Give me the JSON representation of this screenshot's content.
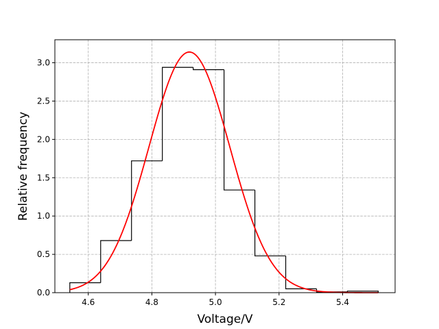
{
  "chart_data": {
    "type": "bar",
    "subtype": "step-histogram-with-fit",
    "title": "",
    "xlabel": "Voltage/V",
    "ylabel": "Relative frequency",
    "xlim": [
      4.495,
      5.565
    ],
    "ylim": [
      0.0,
      3.3
    ],
    "xticks": [
      4.6,
      4.8,
      5.0,
      5.2,
      5.4
    ],
    "xtick_labels": [
      "4.6",
      "4.8",
      "5.0",
      "5.2",
      "5.4"
    ],
    "yticks": [
      0.0,
      0.5,
      1.0,
      1.5,
      2.0,
      2.5,
      3.0
    ],
    "ytick_labels": [
      "0.0",
      "0.5",
      "1.0",
      "1.5",
      "2.0",
      "2.5",
      "3.0"
    ],
    "grid": true,
    "histogram": {
      "bin_edges": [
        4.542,
        4.639,
        4.736,
        4.833,
        4.93,
        5.027,
        5.124,
        5.221,
        5.318,
        5.415,
        5.512
      ],
      "values": [
        0.13,
        0.68,
        1.72,
        2.94,
        2.91,
        1.34,
        0.48,
        0.05,
        0.01,
        0.02
      ],
      "color": "#000000"
    },
    "fit_curve": {
      "type": "normal",
      "mean": 4.918,
      "std": 0.127,
      "peak": 3.14,
      "x_range": [
        4.542,
        5.512
      ],
      "color": "#ff0000"
    }
  }
}
